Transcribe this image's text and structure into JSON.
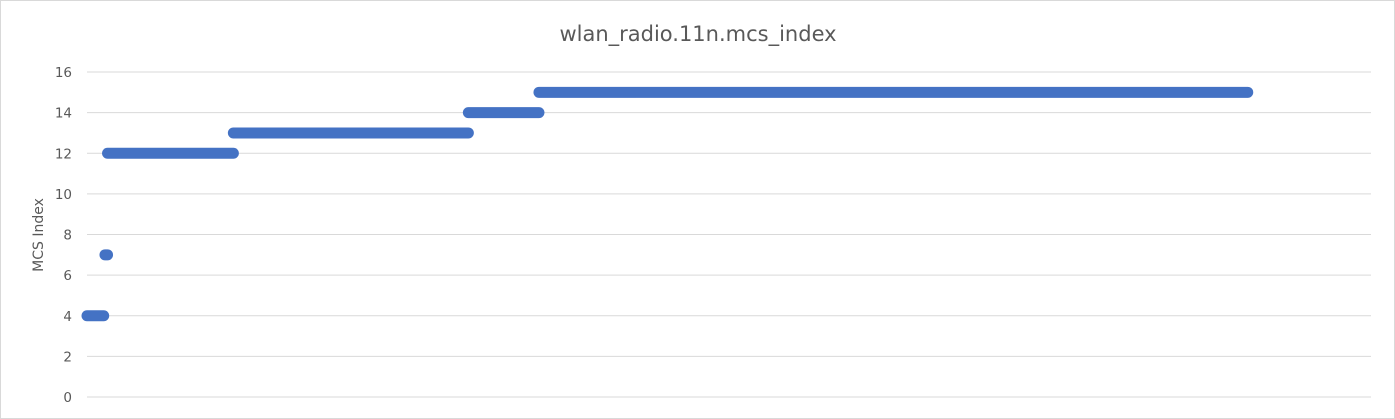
{
  "chart_data": {
    "type": "scatter",
    "title": "wlan_radio.11n.mcs_index",
    "xlabel": "",
    "ylabel": "MCS Index",
    "ylim": [
      0,
      16
    ],
    "yticks": [
      0,
      2,
      4,
      6,
      8,
      10,
      12,
      14,
      16
    ],
    "xlim": [
      0,
      100
    ],
    "grid": true,
    "legend": "none",
    "series": [
      {
        "color": "#4472c4",
        "segments": [
          {
            "x_start": 0.0,
            "x_end": 1.3,
            "y": 4
          },
          {
            "x_start": 1.4,
            "x_end": 1.6,
            "y": 7
          },
          {
            "x_start": 1.6,
            "x_end": 11.4,
            "y": 12
          },
          {
            "x_start": 11.4,
            "x_end": 29.7,
            "y": 13
          },
          {
            "x_start": 29.7,
            "x_end": 35.2,
            "y": 14
          },
          {
            "x_start": 35.2,
            "x_end": 90.4,
            "y": 15
          }
        ]
      }
    ]
  }
}
